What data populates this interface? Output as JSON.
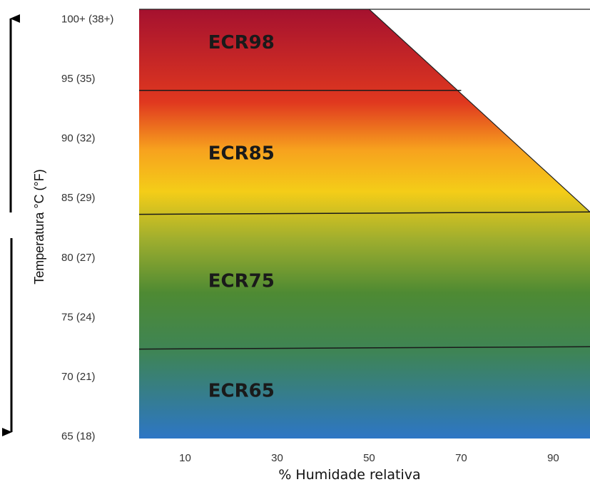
{
  "chart_data": {
    "type": "area",
    "xlabel": "% Humidade relativa",
    "ylabel": "Temperatura °C (°F)",
    "x_ticks": [
      {
        "value": 10,
        "label": "10"
      },
      {
        "value": 30,
        "label": "30"
      },
      {
        "value": 50,
        "label": "50"
      },
      {
        "value": 70,
        "label": "70"
      },
      {
        "value": 90,
        "label": "90"
      }
    ],
    "y_ticks": [
      {
        "value": 100,
        "label": "100+ (38+)"
      },
      {
        "value": 95,
        "label": "95 (35)"
      },
      {
        "value": 90,
        "label": "90 (32)"
      },
      {
        "value": 85,
        "label": "85 (29)"
      },
      {
        "value": 80,
        "label": "80 (27)"
      },
      {
        "value": 75,
        "label": "75 (24)"
      },
      {
        "value": 70,
        "label": "70 (21)"
      },
      {
        "value": 65,
        "label": "65 (18)"
      }
    ],
    "xlim": [
      0,
      98
    ],
    "ylim": [
      64.8,
      100.8
    ],
    "zones": [
      {
        "name": "ECR98",
        "label_x": 15,
        "label_y": 97.5,
        "color": "#b01e2e"
      },
      {
        "name": "ECR85",
        "label_x": 15,
        "label_y": 88.2,
        "color": "#f3a21a"
      },
      {
        "name": "ECR75",
        "label_x": 15,
        "label_y": 77.5,
        "color": "#5e8d35"
      },
      {
        "name": "ECR65",
        "label_x": 15,
        "label_y": 68.3,
        "color": "#3b77ad"
      }
    ],
    "boundaries": [
      {
        "from": [
          0,
          94.0
        ],
        "to": [
          70,
          94.0
        ]
      },
      {
        "from": [
          0,
          83.6
        ],
        "to": [
          98,
          83.8
        ]
      },
      {
        "from": [
          0,
          72.3
        ],
        "to": [
          98,
          72.5
        ]
      }
    ],
    "upper_limit": [
      [
        0,
        100.8
      ],
      [
        50,
        100.8
      ],
      [
        98,
        83.8
      ]
    ],
    "gradient_stops": [
      {
        "y": 100.8,
        "color": "#a5112f"
      },
      {
        "y": 93,
        "color": "#e0381f"
      },
      {
        "y": 89,
        "color": "#f7a21e"
      },
      {
        "y": 85.5,
        "color": "#f4cd18"
      },
      {
        "y": 81.5,
        "color": "#9fae2e"
      },
      {
        "y": 77,
        "color": "#4e8a33"
      },
      {
        "y": 72,
        "color": "#3e8456"
      },
      {
        "y": 64.8,
        "color": "#2d76c5"
      }
    ]
  }
}
